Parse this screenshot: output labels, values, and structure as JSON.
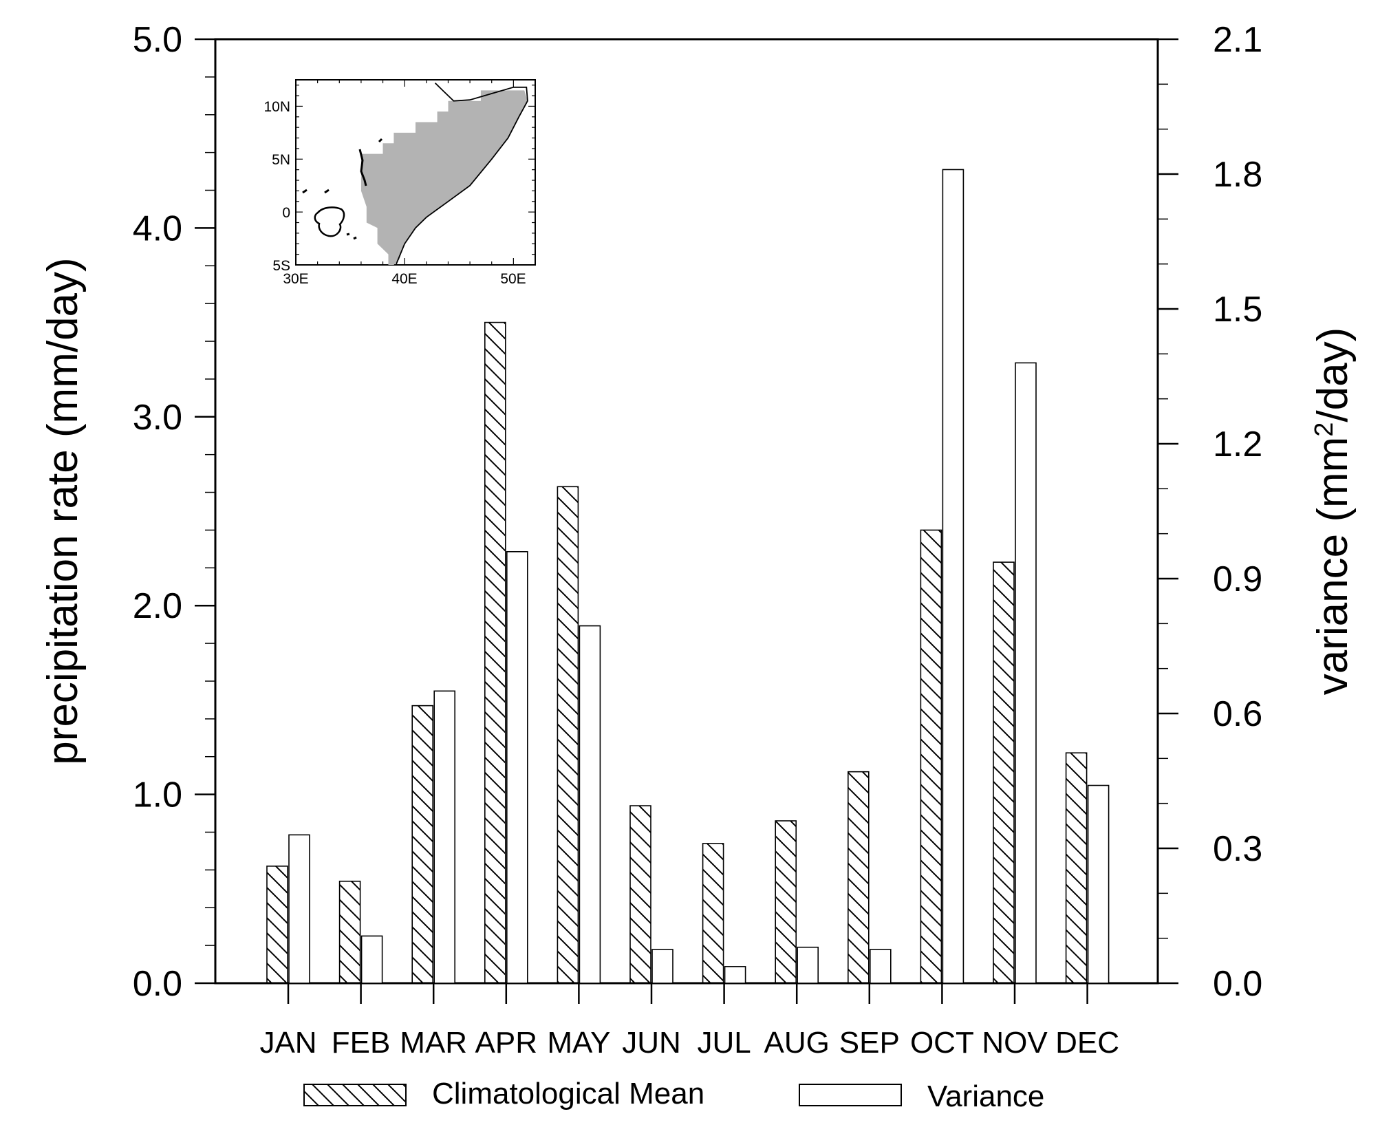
{
  "chart_data": {
    "type": "bar",
    "categories": [
      "JAN",
      "FEB",
      "MAR",
      "APR",
      "MAY",
      "JUN",
      "JUL",
      "AUG",
      "SEP",
      "OCT",
      "NOV",
      "DEC"
    ],
    "series": [
      {
        "name": "Climatological Mean",
        "axis": "left",
        "pattern": "diagonal-hatch",
        "values": [
          0.62,
          0.54,
          1.47,
          3.5,
          2.63,
          0.94,
          0.74,
          0.86,
          1.12,
          2.4,
          2.23,
          1.22
        ]
      },
      {
        "name": "Variance",
        "axis": "right",
        "pattern": "hollow",
        "values": [
          0.33,
          0.105,
          0.65,
          0.96,
          0.795,
          0.075,
          0.037,
          0.08,
          0.075,
          1.81,
          1.38,
          0.44
        ]
      }
    ],
    "ylabel": "precipitation rate (mm/day)",
    "ylim": [
      0,
      5
    ],
    "yticks": [
      "0.0",
      "1.0",
      "2.0",
      "3.0",
      "4.0",
      "5.0"
    ],
    "y2label_parts": [
      "variance (mm",
      "2",
      "/day)"
    ],
    "y2lim": [
      0,
      2.1
    ],
    "y2ticks": [
      "0.0",
      "0.3",
      "0.6",
      "0.9",
      "1.2",
      "1.5",
      "1.8",
      "2.1"
    ],
    "grid": false,
    "legend_position": "bottom-center",
    "colors": {
      "stroke": "#000000",
      "hatch": "#000000",
      "map_land": "#b3b3b3",
      "background": "#ffffff"
    },
    "inset_map": {
      "type": "map",
      "lon_labels": [
        "30E",
        "40E",
        "50E"
      ],
      "lat_labels": [
        "10N",
        "5N",
        "0",
        "5S"
      ],
      "lon_ticks": [
        30,
        40,
        50
      ],
      "lat_ticks": [
        10,
        5,
        0,
        -5
      ],
      "lon_range": [
        30,
        52
      ],
      "lat_range": [
        -5,
        12.5
      ],
      "shaded_region": [
        [
          36,
          5.5
        ],
        [
          38,
          5.5
        ],
        [
          38,
          6.5
        ],
        [
          39,
          6.5
        ],
        [
          39,
          7.5
        ],
        [
          41,
          7.5
        ],
        [
          41,
          8.5
        ],
        [
          43,
          8.5
        ],
        [
          43,
          9.5
        ],
        [
          44,
          9.5
        ],
        [
          44,
          10.5
        ],
        [
          47,
          10.5
        ],
        [
          47,
          11.5
        ],
        [
          51,
          11.5
        ],
        [
          51.3,
          10.5
        ],
        [
          50.5,
          9
        ],
        [
          49.5,
          7
        ],
        [
          48,
          5
        ],
        [
          46,
          2.5
        ],
        [
          44,
          1
        ],
        [
          42,
          -0.5
        ],
        [
          41,
          -1.5
        ],
        [
          40,
          -3
        ],
        [
          39.5,
          -4.5
        ],
        [
          39,
          -5
        ],
        [
          38.5,
          -5
        ],
        [
          38.5,
          -4
        ],
        [
          37.5,
          -3
        ],
        [
          37.5,
          -1.5
        ],
        [
          36.5,
          -1
        ],
        [
          36.5,
          0.5
        ],
        [
          36,
          2
        ]
      ],
      "coastline": [
        [
          39.2,
          -5
        ],
        [
          40,
          -3
        ],
        [
          41,
          -1.5
        ],
        [
          42,
          -0.5
        ],
        [
          44,
          1
        ],
        [
          46,
          2.5
        ],
        [
          48,
          5
        ],
        [
          49.5,
          7
        ],
        [
          50.5,
          9
        ],
        [
          51.3,
          10.5
        ],
        [
          51.2,
          11.8
        ],
        [
          50,
          11.8
        ],
        [
          48,
          11.2
        ],
        [
          46,
          10.6
        ],
        [
          44.5,
          10.5
        ],
        [
          43.5,
          11.5
        ],
        [
          42.8,
          12.2
        ]
      ]
    }
  }
}
